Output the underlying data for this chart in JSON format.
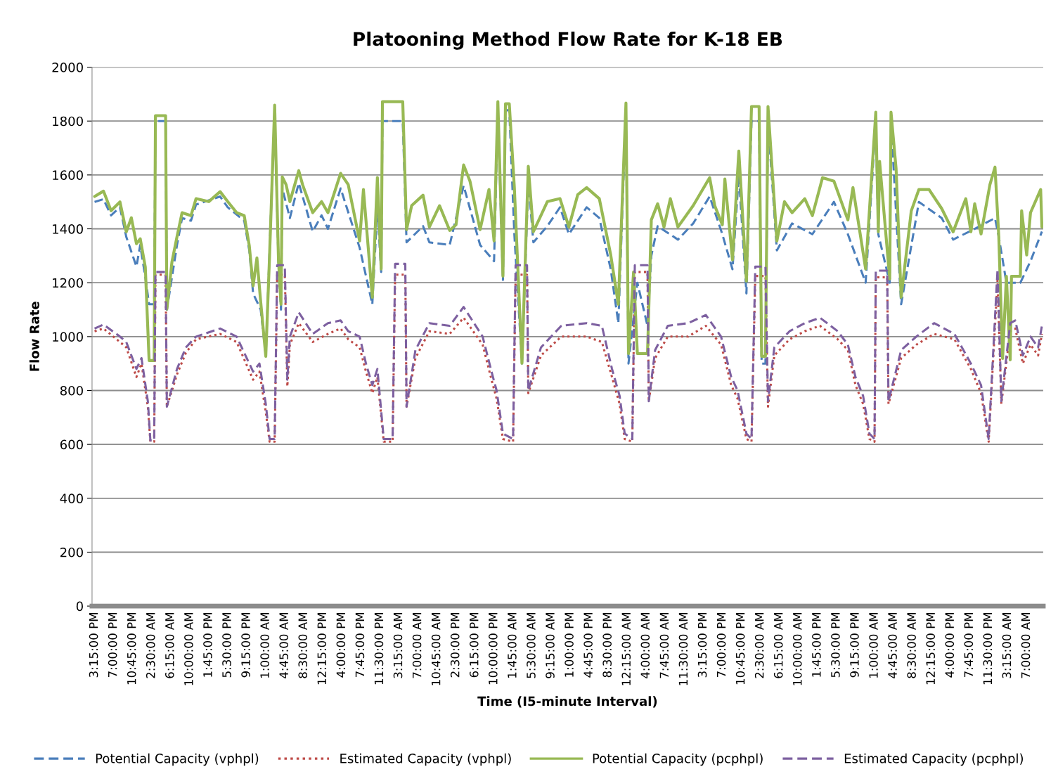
{
  "chart_data": {
    "type": "line",
    "title": "Platooning Method Flow Rate for K-18 EB",
    "xlabel": "Time (I5-minute Interval)",
    "ylabel": "Flow Rate",
    "xlim": [
      "2000-01-01T14:45",
      "2000-01-09T10:15"
    ],
    "ylim": [
      0,
      2000
    ],
    "yticks": [
      0,
      200,
      400,
      600,
      800,
      1000,
      1200,
      1400,
      1600,
      1800,
      2000
    ],
    "xticks": [
      {
        "value": "2000-01-01T15:15",
        "label": "3:15:00 PM"
      },
      {
        "value": "2000-01-01T19:00",
        "label": "7:00:00 PM"
      },
      {
        "value": "2000-01-01T22:45",
        "label": "10:45:00 PM"
      },
      {
        "value": "2000-01-02T02:30",
        "label": "2:30:00 AM"
      },
      {
        "value": "2000-01-02T06:15",
        "label": "6:15:00 AM"
      },
      {
        "value": "2000-01-02T10:00",
        "label": "10:00:00 AM"
      },
      {
        "value": "2000-01-02T13:45",
        "label": "1:45:00 PM"
      },
      {
        "value": "2000-01-02T17:30",
        "label": "5:30:00 PM"
      },
      {
        "value": "2000-01-02T21:15",
        "label": "9:15:00 PM"
      },
      {
        "value": "2000-01-03T01:00",
        "label": "1:00:00 AM"
      },
      {
        "value": "2000-01-03T04:45",
        "label": "4:45:00 AM"
      },
      {
        "value": "2000-01-03T08:30",
        "label": "8:30:00 AM"
      },
      {
        "value": "2000-01-03T12:15",
        "label": "12:15:00 PM"
      },
      {
        "value": "2000-01-03T16:00",
        "label": "4:00:00 PM"
      },
      {
        "value": "2000-01-03T19:45",
        "label": "7:45:00 PM"
      },
      {
        "value": "2000-01-03T23:30",
        "label": "11:30:00 PM"
      },
      {
        "value": "2000-01-04T03:15",
        "label": "3:15:00 AM"
      },
      {
        "value": "2000-01-04T07:00",
        "label": "7:00:00 AM"
      },
      {
        "value": "2000-01-04T10:45",
        "label": "10:45:00 AM"
      },
      {
        "value": "2000-01-04T14:30",
        "label": "2:30:00 PM"
      },
      {
        "value": "2000-01-04T18:15",
        "label": "6:15:00 PM"
      },
      {
        "value": "2000-01-04T22:00",
        "label": "10:00:00 PM"
      },
      {
        "value": "2000-01-05T01:45",
        "label": "1:45:00 AM"
      },
      {
        "value": "2000-01-05T05:30",
        "label": "5:30:00 AM"
      },
      {
        "value": "2000-01-05T09:15",
        "label": "9:15:00 AM"
      },
      {
        "value": "2000-01-05T13:00",
        "label": "1:00:00 PM"
      },
      {
        "value": "2000-01-05T16:45",
        "label": "4:45:00 PM"
      },
      {
        "value": "2000-01-05T20:30",
        "label": "8:30:00 PM"
      },
      {
        "value": "2000-01-06T00:15",
        "label": "12:15:00 AM"
      },
      {
        "value": "2000-01-06T04:00",
        "label": "4:00:00 AM"
      },
      {
        "value": "2000-01-06T07:45",
        "label": "7:45:00 AM"
      },
      {
        "value": "2000-01-06T11:30",
        "label": "11:30:00 AM"
      },
      {
        "value": "2000-01-06T15:15",
        "label": "3:15:00 PM"
      },
      {
        "value": "2000-01-06T19:00",
        "label": "7:00:00 PM"
      },
      {
        "value": "2000-01-06T22:45",
        "label": "10:45:00 PM"
      },
      {
        "value": "2000-01-07T02:30",
        "label": "2:30:00 AM"
      },
      {
        "value": "2000-01-07T06:15",
        "label": "6:15:00 AM"
      },
      {
        "value": "2000-01-07T10:00",
        "label": "10:00:00 AM"
      },
      {
        "value": "2000-01-07T13:45",
        "label": "1:45:00 PM"
      },
      {
        "value": "2000-01-07T17:30",
        "label": "5:30:00 PM"
      },
      {
        "value": "2000-01-07T21:15",
        "label": "9:15:00 PM"
      },
      {
        "value": "2000-01-08T01:00",
        "label": "1:00:00 AM"
      },
      {
        "value": "2000-01-08T04:45",
        "label": "4:45:00 AM"
      },
      {
        "value": "2000-01-08T08:30",
        "label": "8:30:00 AM"
      },
      {
        "value": "2000-01-08T12:15",
        "label": "12:15:00 PM"
      },
      {
        "value": "2000-01-08T16:00",
        "label": "4:00:00 PM"
      },
      {
        "value": "2000-01-08T19:45",
        "label": "7:45:00 PM"
      },
      {
        "value": "2000-01-08T23:30",
        "label": "11:30:00 PM"
      },
      {
        "value": "2000-01-09T03:15",
        "label": "3:15:00 AM"
      },
      {
        "value": "2000-01-09T07:00",
        "label": "7:00:00 AM"
      }
    ],
    "grid": "y",
    "legend": "bottom",
    "series": [
      {
        "name": "Potential Capacity (vphpl)",
        "color": "#4a7ebb",
        "line_style": "dashed",
        "x": [
          "2000-01-01T15:15",
          "2000-01-01T17:00",
          "2000-01-01T18:30",
          "2000-01-01T20:15",
          "2000-01-01T21:30",
          "2000-01-01T23:30",
          "2000-01-02T00:15",
          "2000-01-02T01:15",
          "2000-01-02T02:00",
          "2000-01-02T03:00",
          "2000-01-02T03:15",
          "2000-01-02T05:15",
          "2000-01-02T05:30",
          "2000-01-02T07:30",
          "2000-01-02T08:30",
          "2000-01-02T10:15",
          "2000-01-02T11:15",
          "2000-01-02T16:00",
          "2000-01-02T17:30",
          "2000-01-02T20:45",
          "2000-01-02T21:45",
          "2000-01-02T22:30",
          "2000-01-03T00:00",
          "2000-01-03T01:00",
          "2000-01-03T02:45",
          "2000-01-03T03:30",
          "2000-01-03T04:00",
          "2000-01-03T04:15",
          "2000-01-03T05:45",
          "2000-01-03T07:30",
          "2000-01-03T10:15",
          "2000-01-03T12:00",
          "2000-01-03T13:15",
          "2000-01-03T15:45",
          "2000-01-03T19:30",
          "2000-01-03T22:00",
          "2000-01-03T23:00",
          "2000-01-03T23:45",
          "2000-01-04T00:00",
          "2000-01-04T04:00",
          "2000-01-04T04:45",
          "2000-01-04T08:00",
          "2000-01-04T09:15",
          "2000-01-04T13:15",
          "2000-01-04T16:00",
          "2000-01-04T19:15",
          "2000-01-04T22:00",
          "2000-01-04T22:45",
          "2000-01-04T23:45",
          "2000-01-05T00:15",
          "2000-01-05T01:00",
          "2000-01-05T02:00",
          "2000-01-05T03:30",
          "2000-01-05T04:45",
          "2000-01-05T05:45",
          "2000-01-05T08:30",
          "2000-01-05T11:00",
          "2000-01-05T12:45",
          "2000-01-05T16:15",
          "2000-01-05T18:45",
          "2000-01-05T21:00",
          "2000-01-05T22:30",
          "2000-01-06T00:00",
          "2000-01-06T00:30",
          "2000-01-06T02:15",
          "2000-01-06T04:15",
          "2000-01-06T05:00",
          "2000-01-06T06:15",
          "2000-01-06T10:15",
          "2000-01-06T13:15",
          "2000-01-06T16:30",
          "2000-01-06T19:00",
          "2000-01-06T21:00",
          "2000-01-06T22:15",
          "2000-01-06T23:45",
          "2000-01-07T00:45",
          "2000-01-07T02:15",
          "2000-01-07T02:45",
          "2000-01-07T03:30",
          "2000-01-07T04:00",
          "2000-01-07T05:45",
          "2000-01-07T08:45",
          "2000-01-07T12:45",
          "2000-01-07T17:00",
          "2000-01-07T19:45",
          "2000-01-07T23:15",
          "2000-01-08T01:15",
          "2000-01-08T01:45",
          "2000-01-08T04:00",
          "2000-01-08T04:15",
          "2000-01-08T06:15",
          "2000-01-08T09:45",
          "2000-01-08T14:15",
          "2000-01-08T16:30",
          "2000-01-08T20:45",
          "2000-01-09T00:45",
          "2000-01-09T01:30",
          "2000-01-09T03:00",
          "2000-01-09T05:45",
          "2000-01-09T07:45",
          "2000-01-09T10:00"
        ],
        "values": [
          1500,
          1510,
          1450,
          1480,
          1370,
          1260,
          1340,
          1220,
          1120,
          1120,
          1800,
          1800,
          1100,
          1340,
          1440,
          1430,
          1490,
          1520,
          1480,
          1430,
          1320,
          1160,
          1100,
          930,
          1840,
          1270,
          1100,
          1550,
          1440,
          1570,
          1390,
          1450,
          1400,
          1550,
          1330,
          1120,
          1480,
          1240,
          1800,
          1800,
          1350,
          1410,
          1350,
          1340,
          1560,
          1340,
          1280,
          1840,
          1210,
          1840,
          1840,
          1380,
          900,
          1580,
          1350,
          1410,
          1480,
          1380,
          1480,
          1440,
          1250,
          1050,
          1840,
          900,
          1200,
          1040,
          1300,
          1410,
          1360,
          1420,
          1520,
          1380,
          1250,
          1600,
          1160,
          1800,
          1800,
          900,
          900,
          1800,
          1320,
          1420,
          1380,
          1500,
          1380,
          1200,
          1800,
          1380,
          1200,
          1800,
          1120,
          1500,
          1440,
          1360,
          1400,
          1440,
          1370,
          1200,
          1200,
          1280,
          1390
        ]
      },
      {
        "name": "Estimated Capacity (vphpl)",
        "color": "#be4b48",
        "line_style": "dotted",
        "x": [
          "2000-01-01T15:15",
          "2000-01-01T17:00",
          "2000-01-01T20:15",
          "2000-01-01T21:30",
          "2000-01-01T23:30",
          "2000-01-02T00:30",
          "2000-01-02T01:45",
          "2000-01-02T02:15",
          "2000-01-02T03:00",
          "2000-01-02T03:15",
          "2000-01-02T05:15",
          "2000-01-02T05:30",
          "2000-01-02T07:30",
          "2000-01-02T09:15",
          "2000-01-02T11:15",
          "2000-01-02T16:00",
          "2000-01-02T19:15",
          "2000-01-02T22:30",
          "2000-01-02T23:45",
          "2000-01-03T01:00",
          "2000-01-03T01:45",
          "2000-01-03T02:45",
          "2000-01-03T03:15",
          "2000-01-03T04:45",
          "2000-01-03T05:15",
          "2000-01-03T05:45",
          "2000-01-03T07:30",
          "2000-01-03T10:15",
          "2000-01-03T13:15",
          "2000-01-03T15:45",
          "2000-01-03T17:15",
          "2000-01-03T19:30",
          "2000-01-03T20:45",
          "2000-01-03T22:00",
          "2000-01-03T23:00",
          "2000-01-04T00:15",
          "2000-01-04T02:00",
          "2000-01-04T02:30",
          "2000-01-04T04:30",
          "2000-01-04T04:45",
          "2000-01-04T06:30",
          "2000-01-04T09:15",
          "2000-01-04T13:15",
          "2000-01-04T16:00",
          "2000-01-04T19:45",
          "2000-01-04T21:30",
          "2000-01-04T22:30",
          "2000-01-04T23:45",
          "2000-01-05T01:45",
          "2000-01-05T02:15",
          "2000-01-05T04:30",
          "2000-01-05T04:45",
          "2000-01-05T07:15",
          "2000-01-05T11:15",
          "2000-01-05T16:15",
          "2000-01-05T19:15",
          "2000-01-05T21:15",
          "2000-01-05T22:45",
          "2000-01-05T23:45",
          "2000-01-06T01:15",
          "2000-01-06T01:45",
          "2000-01-06T04:15",
          "2000-01-06T04:30",
          "2000-01-06T05:45",
          "2000-01-06T08:15",
          "2000-01-06T12:15",
          "2000-01-06T15:45",
          "2000-01-06T18:45",
          "2000-01-06T20:45",
          "2000-01-06T22:00",
          "2000-01-06T23:45",
          "2000-01-07T00:45",
          "2000-01-07T01:30",
          "2000-01-07T03:30",
          "2000-01-07T04:00",
          "2000-01-07T05:15",
          "2000-01-07T08:15",
          "2000-01-07T11:15",
          "2000-01-07T14:15",
          "2000-01-07T17:45",
          "2000-01-07T19:45",
          "2000-01-07T21:15",
          "2000-01-07T22:45",
          "2000-01-08T00:00",
          "2000-01-08T01:00",
          "2000-01-08T01:15",
          "2000-01-08T03:30",
          "2000-01-08T03:45",
          "2000-01-08T06:15",
          "2000-01-08T09:15",
          "2000-01-08T12:45",
          "2000-01-08T16:45",
          "2000-01-08T20:00",
          "2000-01-08T22:00",
          "2000-01-08T23:30",
          "2000-01-09T01:15",
          "2000-01-09T02:00",
          "2000-01-09T03:45",
          "2000-01-09T04:45",
          "2000-01-09T06:15",
          "2000-01-09T07:45",
          "2000-01-09T09:15",
          "2000-01-09T10:00"
        ],
        "values": [
          1020,
          1030,
          980,
          960,
          850,
          900,
          740,
          610,
          610,
          1230,
          1230,
          740,
          860,
          940,
          990,
          1010,
          980,
          840,
          870,
          720,
          610,
          610,
          1230,
          1230,
          815,
          970,
          1050,
          980,
          1010,
          1030,
          990,
          960,
          870,
          790,
          850,
          610,
          610,
          1230,
          1230,
          740,
          920,
          1020,
          1010,
          1070,
          970,
          840,
          770,
          620,
          610,
          1230,
          1230,
          790,
          930,
          1000,
          1000,
          980,
          850,
          750,
          620,
          610,
          1240,
          1240,
          760,
          920,
          1000,
          1000,
          1040,
          970,
          820,
          770,
          620,
          610,
          1225,
          1225,
          740,
          930,
          990,
          1020,
          1040,
          990,
          950,
          820,
          750,
          620,
          610,
          1220,
          1220,
          750,
          920,
          970,
          1010,
          990,
          880,
          790,
          610,
          1210,
          750,
          1020,
          1030,
          900,
          970,
          930,
          1010
        ]
      },
      {
        "name": "Potential Capacity (pcphpl)",
        "color": "#98b954",
        "line_style": "solid",
        "x": [
          "2000-01-01T15:15",
          "2000-01-01T17:00",
          "2000-01-01T18:30",
          "2000-01-01T20:15",
          "2000-01-01T21:30",
          "2000-01-01T22:30",
          "2000-01-01T23:30",
          "2000-01-02T00:15",
          "2000-01-02T01:15",
          "2000-01-02T02:00",
          "2000-01-02T03:00",
          "2000-01-02T03:15",
          "2000-01-02T05:15",
          "2000-01-02T05:30",
          "2000-01-02T06:30",
          "2000-01-02T07:30",
          "2000-01-02T08:30",
          "2000-01-02T10:15",
          "2000-01-02T11:15",
          "2000-01-02T13:45",
          "2000-01-02T16:00",
          "2000-01-02T17:30",
          "2000-01-02T19:15",
          "2000-01-02T20:45",
          "2000-01-02T21:45",
          "2000-01-02T22:30",
          "2000-01-02T23:15",
          "2000-01-03T00:00",
          "2000-01-03T01:00",
          "2000-01-03T01:45",
          "2000-01-03T02:45",
          "2000-01-03T03:30",
          "2000-01-03T04:00",
          "2000-01-03T04:15",
          "2000-01-03T05:00",
          "2000-01-03T05:45",
          "2000-01-03T07:30",
          "2000-01-03T08:15",
          "2000-01-03T10:15",
          "2000-01-03T12:00",
          "2000-01-03T13:15",
          "2000-01-03T15:45",
          "2000-01-03T17:15",
          "2000-01-03T19:30",
          "2000-01-03T20:15",
          "2000-01-03T22:00",
          "2000-01-03T23:00",
          "2000-01-03T23:45",
          "2000-01-04T00:00",
          "2000-01-04T04:00",
          "2000-01-04T04:45",
          "2000-01-04T05:45",
          "2000-01-04T08:00",
          "2000-01-04T09:15",
          "2000-01-04T11:15",
          "2000-01-04T13:15",
          "2000-01-04T14:30",
          "2000-01-04T16:00",
          "2000-01-04T17:15",
          "2000-01-04T19:15",
          "2000-01-04T21:00",
          "2000-01-04T22:00",
          "2000-01-04T22:45",
          "2000-01-04T23:45",
          "2000-01-05T00:15",
          "2000-01-05T01:00",
          "2000-01-05T02:00",
          "2000-01-05T03:30",
          "2000-01-05T04:45",
          "2000-01-05T05:45",
          "2000-01-05T08:30",
          "2000-01-05T11:00",
          "2000-01-05T12:45",
          "2000-01-05T14:30",
          "2000-01-05T16:15",
          "2000-01-05T18:45",
          "2000-01-05T21:00",
          "2000-01-05T22:30",
          "2000-01-06T00:00",
          "2000-01-06T00:30",
          "2000-01-06T01:30",
          "2000-01-06T02:15",
          "2000-01-06T04:15",
          "2000-01-06T05:00",
          "2000-01-06T06:15",
          "2000-01-06T07:30",
          "2000-01-06T08:45",
          "2000-01-06T10:15",
          "2000-01-06T13:15",
          "2000-01-06T16:30",
          "2000-01-06T17:30",
          "2000-01-06T19:00",
          "2000-01-06T19:30",
          "2000-01-06T21:00",
          "2000-01-06T22:15",
          "2000-01-06T23:45",
          "2000-01-07T00:45",
          "2000-01-07T02:15",
          "2000-01-07T02:45",
          "2000-01-07T03:30",
          "2000-01-07T04:00",
          "2000-01-07T05:45",
          "2000-01-07T07:15",
          "2000-01-07T08:45",
          "2000-01-07T11:15",
          "2000-01-07T12:45",
          "2000-01-07T14:45",
          "2000-01-07T17:00",
          "2000-01-07T19:45",
          "2000-01-07T20:45",
          "2000-01-07T23:15",
          "2000-01-08T01:15",
          "2000-01-08T01:45",
          "2000-01-08T02:00",
          "2000-01-08T04:00",
          "2000-01-08T04:15",
          "2000-01-08T05:15",
          "2000-01-08T06:15",
          "2000-01-08T08:15",
          "2000-01-08T09:45",
          "2000-01-08T11:45",
          "2000-01-08T14:15",
          "2000-01-08T16:30",
          "2000-01-08T19:00",
          "2000-01-08T20:00",
          "2000-01-08T20:45",
          "2000-01-08T22:00",
          "2000-01-08T23:45",
          "2000-01-09T00:45",
          "2000-01-09T01:30",
          "2000-01-09T02:15",
          "2000-01-09T03:00",
          "2000-01-09T03:45",
          "2000-01-09T04:00",
          "2000-01-09T05:45",
          "2000-01-09T06:00",
          "2000-01-09T07:00",
          "2000-01-09T07:45",
          "2000-01-09T09:45",
          "2000-01-09T10:00"
        ],
        "values": [
          1520,
          1540,
          1467,
          1500,
          1389,
          1441,
          1345,
          1363,
          1258,
          911,
          911,
          1820,
          1820,
          1102,
          1277,
          1371,
          1460,
          1449,
          1512,
          1501,
          1538,
          1501,
          1460,
          1449,
          1337,
          1188,
          1292,
          1128,
          927,
          1303,
          1859,
          1285,
          1120,
          1593,
          1564,
          1501,
          1616,
          1564,
          1460,
          1501,
          1460,
          1606,
          1564,
          1355,
          1546,
          1146,
          1590,
          1251,
          1872,
          1872,
          1397,
          1486,
          1525,
          1407,
          1486,
          1394,
          1415,
          1637,
          1577,
          1397,
          1546,
          1355,
          1872,
          1224,
          1864,
          1864,
          1553,
          901,
          1632,
          1389,
          1501,
          1512,
          1407,
          1527,
          1553,
          1512,
          1303,
          1120,
          1867,
          937,
          1240,
          937,
          937,
          1433,
          1493,
          1407,
          1512,
          1407,
          1486,
          1590,
          1486,
          1415,
          1585,
          1285,
          1689,
          1206,
          1854,
          1854,
          927,
          927,
          1854,
          1355,
          1501,
          1460,
          1512,
          1449,
          1590,
          1577,
          1433,
          1553,
          1251,
          1833,
          1389,
          1650,
          1214,
          1833,
          1624,
          1146,
          1467,
          1546,
          1546,
          1475,
          1389,
          1512,
          1389,
          1493,
          1381,
          1564,
          1629,
          1371,
          919,
          1224,
          914,
          1224,
          1224,
          1467,
          1303,
          1460,
          1546,
          1407
        ]
      },
      {
        "name": "Estimated Capacity (pcphpl)",
        "color": "#7d60a0",
        "line_style": "dashed",
        "x": [
          "2000-01-01T15:15",
          "2000-01-01T17:00",
          "2000-01-01T20:15",
          "2000-01-01T21:30",
          "2000-01-01T23:30",
          "2000-01-02T00:30",
          "2000-01-02T01:45",
          "2000-01-02T02:15",
          "2000-01-02T03:00",
          "2000-01-02T03:15",
          "2000-01-02T05:15",
          "2000-01-02T05:30",
          "2000-01-02T07:30",
          "2000-01-02T09:15",
          "2000-01-02T11:15",
          "2000-01-02T16:00",
          "2000-01-02T19:15",
          "2000-01-02T22:30",
          "2000-01-02T23:45",
          "2000-01-03T01:00",
          "2000-01-03T01:45",
          "2000-01-03T02:45",
          "2000-01-03T03:15",
          "2000-01-03T04:45",
          "2000-01-03T05:15",
          "2000-01-03T05:45",
          "2000-01-03T07:30",
          "2000-01-03T10:15",
          "2000-01-03T13:15",
          "2000-01-03T15:45",
          "2000-01-03T17:15",
          "2000-01-03T19:30",
          "2000-01-03T20:45",
          "2000-01-03T22:00",
          "2000-01-03T23:00",
          "2000-01-04T00:15",
          "2000-01-04T02:00",
          "2000-01-04T02:30",
          "2000-01-04T04:30",
          "2000-01-04T04:45",
          "2000-01-04T06:30",
          "2000-01-04T09:15",
          "2000-01-04T13:15",
          "2000-01-04T16:00",
          "2000-01-04T19:45",
          "2000-01-04T21:30",
          "2000-01-04T22:30",
          "2000-01-04T23:45",
          "2000-01-05T01:45",
          "2000-01-05T02:15",
          "2000-01-05T04:30",
          "2000-01-05T04:45",
          "2000-01-05T07:15",
          "2000-01-05T11:15",
          "2000-01-05T16:15",
          "2000-01-05T19:15",
          "2000-01-05T21:15",
          "2000-01-05T22:45",
          "2000-01-05T23:45",
          "2000-01-06T01:15",
          "2000-01-06T01:45",
          "2000-01-06T04:15",
          "2000-01-06T04:30",
          "2000-01-06T05:45",
          "2000-01-06T08:15",
          "2000-01-06T12:15",
          "2000-01-06T15:45",
          "2000-01-06T18:45",
          "2000-01-06T20:45",
          "2000-01-06T22:00",
          "2000-01-06T23:45",
          "2000-01-07T00:45",
          "2000-01-07T01:30",
          "2000-01-07T03:30",
          "2000-01-07T04:00",
          "2000-01-07T05:15",
          "2000-01-07T08:15",
          "2000-01-07T11:15",
          "2000-01-07T14:15",
          "2000-01-07T17:45",
          "2000-01-07T19:45",
          "2000-01-07T21:15",
          "2000-01-07T22:45",
          "2000-01-08T00:00",
          "2000-01-08T01:00",
          "2000-01-08T01:15",
          "2000-01-08T03:30",
          "2000-01-08T03:45",
          "2000-01-08T06:15",
          "2000-01-08T09:15",
          "2000-01-08T12:45",
          "2000-01-08T16:45",
          "2000-01-08T20:00",
          "2000-01-08T22:00",
          "2000-01-08T23:30",
          "2000-01-09T01:15",
          "2000-01-09T02:00",
          "2000-01-09T03:45",
          "2000-01-09T04:45",
          "2000-01-09T06:15",
          "2000-01-09T07:45",
          "2000-01-09T09:15",
          "2000-01-09T10:00"
        ],
        "values": [
          1030,
          1045,
          1000,
          980,
          880,
          920,
          760,
          615,
          615,
          1240,
          1240,
          740,
          880,
          960,
          1000,
          1030,
          1000,
          870,
          900,
          750,
          620,
          620,
          1265,
          1265,
          840,
          1000,
          1090,
          1010,
          1050,
          1060,
          1020,
          1000,
          900,
          820,
          880,
          620,
          620,
          1270,
          1270,
          740,
          950,
          1050,
          1040,
          1110,
          1000,
          870,
          800,
          640,
          620,
          1265,
          1265,
          800,
          960,
          1040,
          1050,
          1040,
          880,
          780,
          640,
          620,
          1265,
          1265,
          760,
          950,
          1040,
          1050,
          1080,
          1000,
          850,
          800,
          640,
          620,
          1260,
          1260,
          760,
          960,
          1020,
          1050,
          1070,
          1020,
          970,
          850,
          780,
          640,
          620,
          1245,
          1245,
          760,
          950,
          1000,
          1050,
          1010,
          900,
          820,
          620,
          1250,
          760,
          1050,
          1060,
          930,
          1000,
          960,
          1040
        ]
      }
    ]
  }
}
